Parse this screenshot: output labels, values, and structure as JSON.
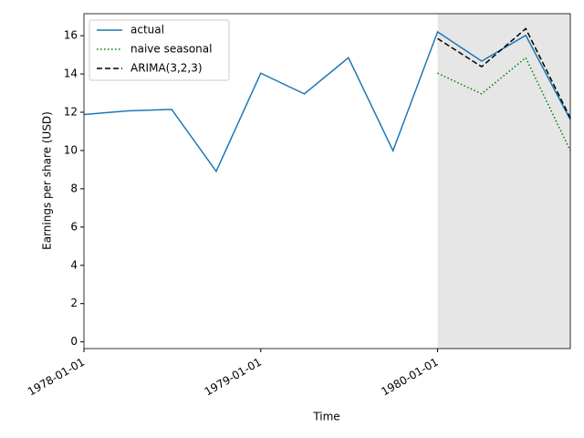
{
  "chart_data": {
    "type": "line",
    "x_label": "Time",
    "y_label": "Earnings per share (USD)",
    "x": [
      "1978-01-01",
      "1978-04-01",
      "1978-07-01",
      "1978-10-01",
      "1979-01-01",
      "1979-04-01",
      "1979-07-01",
      "1979-10-01",
      "1980-01-01",
      "1980-04-01",
      "1980-07-01",
      "1980-10-01"
    ],
    "series": [
      {
        "name": "actual",
        "color": "#1f77b4",
        "style": "solid",
        "values": [
          11.88,
          12.07,
          12.15,
          8.91,
          14.04,
          12.96,
          14.85,
          9.99,
          16.2,
          14.67,
          16.02,
          11.61
        ]
      },
      {
        "name": "naive seasonal",
        "color": "#008000",
        "style": "dotted",
        "values": [
          null,
          null,
          null,
          null,
          null,
          null,
          null,
          null,
          14.04,
          12.96,
          14.85,
          9.99
        ]
      },
      {
        "name": "ARIMA(3,2,3)",
        "color": "#000000",
        "style": "dashed",
        "values": [
          null,
          null,
          null,
          null,
          null,
          null,
          null,
          null,
          15.85,
          14.38,
          16.37,
          11.7
        ]
      }
    ],
    "shaded_span": [
      "1980-01-01",
      "1980-10-01"
    ],
    "shade_color": "#808080",
    "xlim": [
      "1978-01-01",
      "1980-10-01"
    ],
    "xticks": [
      "1978-01-01",
      "1979-01-01",
      "1980-01-01"
    ],
    "ylim": [
      -0.35,
      17.15
    ],
    "yticks": [
      0,
      2,
      4,
      6,
      8,
      10,
      12,
      14,
      16
    ],
    "legend": "upper left",
    "grid": false
  }
}
